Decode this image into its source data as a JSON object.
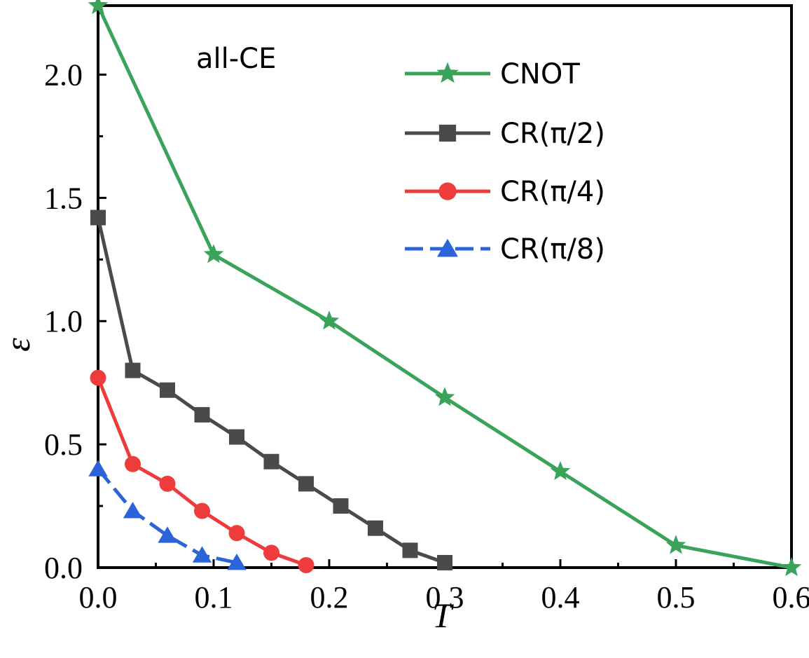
{
  "chart_data": {
    "type": "line",
    "annotation": "all-CE",
    "xlabel": "T",
    "ylabel": "ε",
    "xlim": [
      0,
      0.6
    ],
    "ylim": [
      0,
      2.28
    ],
    "xticks": [
      0.0,
      0.1,
      0.2,
      0.3,
      0.4,
      0.5,
      0.6
    ],
    "yticks": [
      0.0,
      0.5,
      1.0,
      1.5,
      2.0
    ],
    "x_tick_labels": [
      "0.0",
      "0.1",
      "0.2",
      "0.3",
      "0.4",
      "0.5",
      "0.6"
    ],
    "y_tick_labels": [
      "0.0",
      "0.5",
      "1.0",
      "1.5",
      "2.0"
    ],
    "grid": false,
    "legend_position": "top-right",
    "series": [
      {
        "name": "CNOT",
        "color": "#3aa35a",
        "marker": "star",
        "dash": "solid",
        "x": [
          0.0,
          0.1,
          0.2,
          0.3,
          0.4,
          0.5,
          0.6
        ],
        "y": [
          2.28,
          1.27,
          1.0,
          0.69,
          0.39,
          0.09,
          0.0
        ]
      },
      {
        "name": "CR(π/2)",
        "color": "#4a4a4a",
        "marker": "square",
        "dash": "solid",
        "x": [
          0.0,
          0.03,
          0.06,
          0.09,
          0.12,
          0.15,
          0.18,
          0.21,
          0.24,
          0.27,
          0.3
        ],
        "y": [
          1.42,
          0.8,
          0.72,
          0.62,
          0.53,
          0.43,
          0.34,
          0.25,
          0.16,
          0.07,
          0.02
        ]
      },
      {
        "name": "CR(π/4)",
        "color": "#ee3b3b",
        "marker": "circle",
        "dash": "solid",
        "x": [
          0.0,
          0.03,
          0.06,
          0.09,
          0.12,
          0.15,
          0.18
        ],
        "y": [
          0.77,
          0.42,
          0.34,
          0.23,
          0.14,
          0.06,
          0.01
        ]
      },
      {
        "name": "CR(π/8)",
        "color": "#2b64d8",
        "marker": "triangle",
        "dash": "dashed",
        "x": [
          0.0,
          0.03,
          0.06,
          0.09,
          0.12
        ],
        "y": [
          0.4,
          0.23,
          0.13,
          0.05,
          0.02
        ]
      }
    ]
  }
}
